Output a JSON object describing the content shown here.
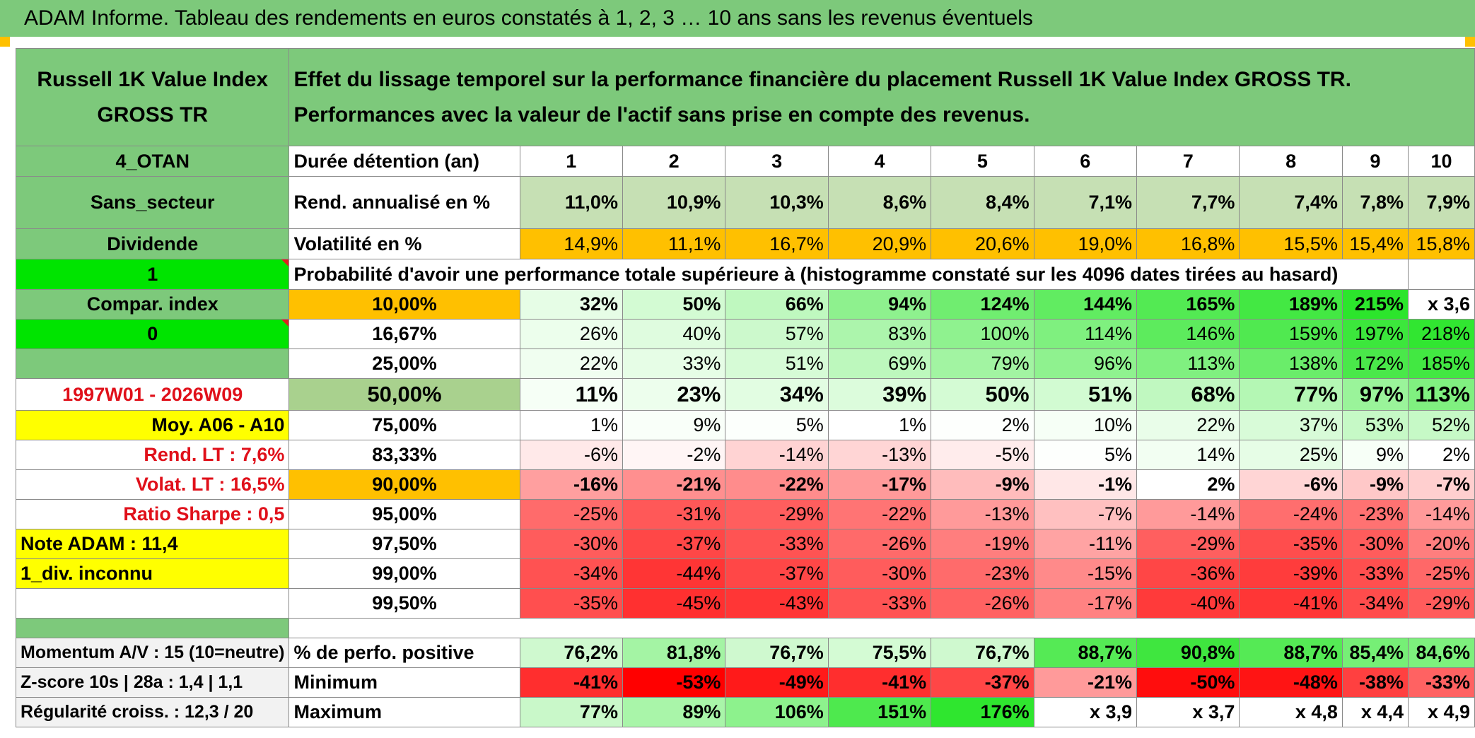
{
  "title": "ADAM Informe. Tableau des rendements en euros constatés à 1, 2, 3 … 10 ans sans les revenus éventuels",
  "header": {
    "instrument": "Russell 1K Value Index GROSS TR",
    "description": "Effet du lissage temporel sur la performance financière du placement Russell 1K Value Index GROSS TR. Performances avec la valeur de l'actif sans prise en compte des revenus."
  },
  "sidebar": {
    "code": "4_OTAN",
    "sector": "Sans_secteur",
    "dividend": "Dividende",
    "one": "1",
    "compar": "Compar. index",
    "zero": "0",
    "period": "1997W01 - 2026W09",
    "moy": "Moy. A06 - A10",
    "rend_lt": "Rend. LT :   7,6%",
    "volat_lt": "Volat. LT :   16,5%",
    "sharpe": "Ratio Sharpe :   0,5",
    "note": "Note ADAM : 11,4",
    "div": "1_div. inconnu",
    "momentum": "Momentum A/V : 15 (10=neutre)",
    "zscore": "Z-score 10s | 28a : 1,4 | 1,1",
    "regularite": "Régularité croiss. : 12,3 / 20"
  },
  "table": {
    "duration_label": "Durée détention (an)",
    "years": [
      "1",
      "2",
      "3",
      "4",
      "5",
      "6",
      "7",
      "8",
      "9",
      "10"
    ],
    "rend_label": "Rend. annualisé en %",
    "rend": [
      "11,0%",
      "10,9%",
      "10,3%",
      "8,6%",
      "8,4%",
      "7,1%",
      "7,7%",
      "7,4%",
      "7,8%",
      "7,9%"
    ],
    "vol_label": "Volatilité en %",
    "vol": [
      "14,9%",
      "11,1%",
      "16,7%",
      "20,9%",
      "20,6%",
      "19,0%",
      "16,8%",
      "15,5%",
      "15,4%",
      "15,8%"
    ],
    "prob_label": "Probabilité d'avoir une performance totale supérieure à (histogramme constaté sur les 4096 dates tirées au hasard)",
    "rows": [
      {
        "p": "10,00%",
        "v": [
          "32%",
          "50%",
          "66%",
          "94%",
          "124%",
          "144%",
          "165%",
          "189%",
          "215%",
          "x 3,6"
        ]
      },
      {
        "p": "16,67%",
        "v": [
          "26%",
          "40%",
          "57%",
          "83%",
          "100%",
          "114%",
          "146%",
          "159%",
          "197%",
          "218%"
        ]
      },
      {
        "p": "25,00%",
        "v": [
          "22%",
          "33%",
          "51%",
          "69%",
          "79%",
          "96%",
          "113%",
          "138%",
          "172%",
          "185%"
        ]
      },
      {
        "p": "50,00%",
        "v": [
          "11%",
          "23%",
          "34%",
          "39%",
          "50%",
          "51%",
          "68%",
          "77%",
          "97%",
          "113%"
        ]
      },
      {
        "p": "75,00%",
        "v": [
          "1%",
          "9%",
          "5%",
          "1%",
          "2%",
          "10%",
          "22%",
          "37%",
          "53%",
          "52%"
        ]
      },
      {
        "p": "83,33%",
        "v": [
          "-6%",
          "-2%",
          "-14%",
          "-13%",
          "-5%",
          "5%",
          "14%",
          "25%",
          "9%",
          "2%"
        ]
      },
      {
        "p": "90,00%",
        "v": [
          "-16%",
          "-21%",
          "-22%",
          "-17%",
          "-9%",
          "-1%",
          "2%",
          "-6%",
          "-9%",
          "-7%"
        ]
      },
      {
        "p": "95,00%",
        "v": [
          "-25%",
          "-31%",
          "-29%",
          "-22%",
          "-13%",
          "-7%",
          "-14%",
          "-24%",
          "-23%",
          "-14%"
        ]
      },
      {
        "p": "97,50%",
        "v": [
          "-30%",
          "-37%",
          "-33%",
          "-26%",
          "-19%",
          "-11%",
          "-29%",
          "-35%",
          "-30%",
          "-20%"
        ]
      },
      {
        "p": "99,00%",
        "v": [
          "-34%",
          "-44%",
          "-37%",
          "-30%",
          "-23%",
          "-15%",
          "-36%",
          "-39%",
          "-33%",
          "-25%"
        ]
      },
      {
        "p": "99,50%",
        "v": [
          "-35%",
          "-45%",
          "-43%",
          "-33%",
          "-26%",
          "-17%",
          "-40%",
          "-41%",
          "-34%",
          "-29%"
        ]
      }
    ],
    "pos_label": "% de perfo. positive",
    "pos": [
      "76,2%",
      "81,8%",
      "76,7%",
      "75,5%",
      "76,7%",
      "88,7%",
      "90,8%",
      "88,7%",
      "85,4%",
      "84,6%"
    ],
    "min_label": "Minimum",
    "min": [
      "-41%",
      "-53%",
      "-49%",
      "-41%",
      "-37%",
      "-21%",
      "-50%",
      "-48%",
      "-38%",
      "-33%"
    ],
    "max_label": "Maximum",
    "max": [
      "77%",
      "89%",
      "106%",
      "151%",
      "176%",
      "x 3,9",
      "x 3,7",
      "x 4,8",
      "x 4,4",
      "x 4,9"
    ]
  },
  "colors": {
    "header_green": "#7dc97b",
    "orange": "#ffc000",
    "lime": "#00e400",
    "yellow": "#ffff00",
    "label_red": "#e0101a"
  },
  "cell_colors": {
    "rows": [
      [
        "#e6fde6",
        "#d3fbd3",
        "#bff8bf",
        "#8ef18e",
        "#70ed70",
        "#61ec61",
        "#53ea53",
        "#43e843",
        "#2ce52c",
        "#ffffff"
      ],
      [
        "#ecfeec",
        "#dffcdf",
        "#ccf9cc",
        "#acf5ac",
        "#8ff28f",
        "#7ff07f",
        "#5deb5d",
        "#50e950",
        "#3ce73c",
        "#31e631"
      ],
      [
        "#f0fef0",
        "#e6fde6",
        "#d6fbd6",
        "#bdf8bd",
        "#a2f4a2",
        "#8ff28f",
        "#80f080",
        "#6aed6a",
        "#4ae84a",
        "#42e842"
      ],
      [
        "#f6fff6",
        "#edfeed",
        "#e2fde2",
        "#dcfcdc",
        "#d4fbd4",
        "#d2fbd2",
        "#c0f8c0",
        "#b4f7b4",
        "#9af49a",
        "#80f080"
      ],
      [
        "#ffffff",
        "#f9fff9",
        "#fcfffc",
        "#ffffff",
        "#fdfffd",
        "#f6fff6",
        "#e9fde9",
        "#d8fbd8",
        "#c6f9c6",
        "#c6f9c6"
      ],
      [
        "#ffe9e9",
        "#fff5f5",
        "#ffd3d3",
        "#ffd5d5",
        "#ffecec",
        "#fdfffd",
        "#f2fef2",
        "#e6fde6",
        "#f7fff7",
        "#ffffff"
      ],
      [
        "#ff9f9f",
        "#ff8f8f",
        "#ff8c8c",
        "#ff9a9a",
        "#ffbcbc",
        "#ffe7e7",
        "#ffffff",
        "#ffd5d5",
        "#ffc8c8",
        "#ffcfcf"
      ],
      [
        "#ff6b6b",
        "#ff5858",
        "#ff5e5e",
        "#ff7474",
        "#ff9a9a",
        "#ffc0c0",
        "#ff9a9a",
        "#ff6e6e",
        "#ff7272",
        "#ff9a9a"
      ],
      [
        "#ff5c5c",
        "#ff4747",
        "#ff5353",
        "#ff6a6a",
        "#ff7e7e",
        "#ffa3a3",
        "#ff5f5f",
        "#ff4d4d",
        "#ff5c5c",
        "#ff7e7e"
      ],
      [
        "#ff5252",
        "#ff3535",
        "#ff4747",
        "#ff5c5c",
        "#ff6b6b",
        "#ff8a8a",
        "#ff4646",
        "#ff3c3c",
        "#ff4f4f",
        "#ff6868"
      ],
      [
        "#ff4f4f",
        "#ff3030",
        "#ff3636",
        "#ff5454",
        "#ff6262",
        "#ff8282",
        "#ff3a3a",
        "#ff3636",
        "#ff4c4c",
        "#ff5c5c"
      ]
    ],
    "pos": [
      "#cff9cf",
      "#a4f4a4",
      "#cff9cf",
      "#d4fbd4",
      "#cff9cf",
      "#55ea55",
      "#3fe63f",
      "#55ea55",
      "#76ef76",
      "#7df07d"
    ],
    "min": [
      "#ff2e2e",
      "#ff0000",
      "#ff1a1a",
      "#ff2e2e",
      "#ff4646",
      "#ff9a9a",
      "#ff0d0d",
      "#ff1414",
      "#ff4040",
      "#ff6262"
    ],
    "max": [
      "#c9f8c9",
      "#a9f5a9",
      "#8df28d",
      "#4ee94e",
      "#2fe62f",
      "#ffffff",
      "#ffffff",
      "#ffffff",
      "#ffffff",
      "#ffffff"
    ]
  }
}
